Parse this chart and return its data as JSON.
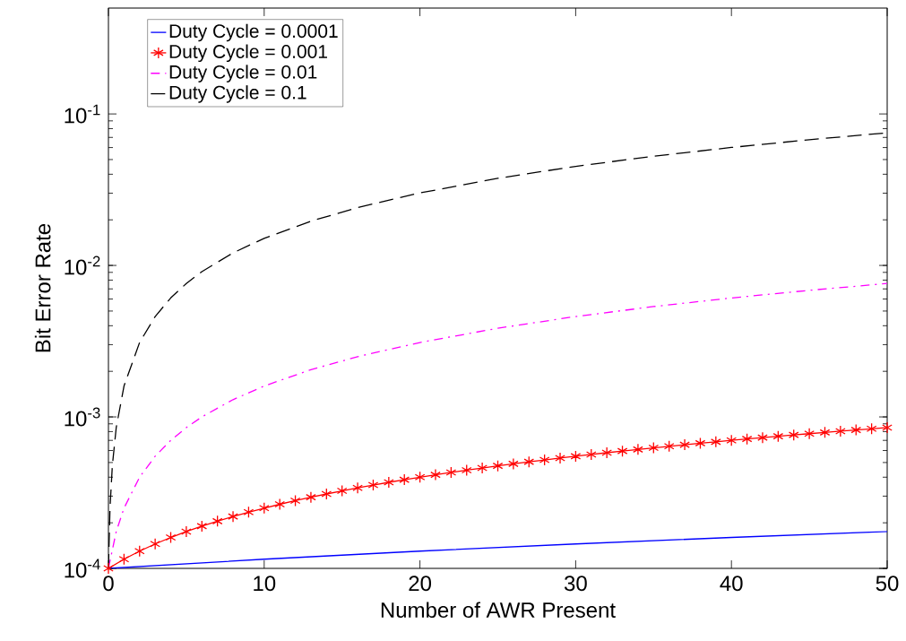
{
  "chart_data": {
    "type": "line",
    "xlabel": "Number of AWR Present",
    "ylabel": "Bit Error Rate",
    "log": "y",
    "grid": false,
    "legend": "top left",
    "xlim": [
      0,
      50
    ],
    "xticks": [
      0,
      10,
      20,
      30,
      40,
      50
    ],
    "ylim": [
      0.0001,
      0.5
    ],
    "yticks": [
      {
        "value": 0.0001,
        "label": "10$^{-4}$"
      },
      {
        "value": 0.001,
        "label": "10$^{-3}$"
      },
      {
        "value": 0.01,
        "label": "10$^{-2}$"
      },
      {
        "value": 0.1,
        "label": "10$^{-1}$"
      }
    ],
    "series": [
      {
        "name": "Duty Cycle = 0.0001",
        "color": "#0000ff",
        "line_style": "solid",
        "marker": "none",
        "x": [
          0,
          10,
          20,
          30,
          40,
          50
        ],
        "values": [
          0.0001,
          0.000115,
          0.00013,
          0.000145,
          0.00016,
          0.000175
        ]
      },
      {
        "name": "Duty Cycle = 0.001",
        "color": "#ff0000",
        "line_style": "solid",
        "marker": "cross",
        "x": [
          0,
          1,
          2,
          3,
          4,
          5,
          6,
          7,
          8,
          9,
          10,
          11,
          12,
          13,
          14,
          15,
          16,
          17,
          18,
          19,
          20,
          21,
          22,
          23,
          24,
          25,
          26,
          27,
          28,
          29,
          30,
          31,
          32,
          33,
          34,
          35,
          36,
          37,
          38,
          39,
          40,
          41,
          42,
          43,
          44,
          45,
          46,
          47,
          48,
          49,
          50
        ],
        "values": [
          0.0001,
          0.000115,
          0.00013,
          0.000145,
          0.00016,
          0.000175,
          0.00019,
          0.000205,
          0.00022,
          0.000235,
          0.00025,
          0.000265,
          0.00028,
          0.000295,
          0.00031,
          0.000325,
          0.00034,
          0.000355,
          0.00037,
          0.000385,
          0.0004,
          0.000415,
          0.00043,
          0.000445,
          0.00046,
          0.000475,
          0.00049,
          0.000505,
          0.00052,
          0.000535,
          0.00055,
          0.000565,
          0.00058,
          0.000595,
          0.00061,
          0.000625,
          0.00064,
          0.000655,
          0.00067,
          0.000685,
          0.0007,
          0.000715,
          0.00073,
          0.000745,
          0.00076,
          0.000775,
          0.00079,
          0.000805,
          0.00082,
          0.000835,
          0.00085
        ]
      },
      {
        "name": "Duty Cycle = 0.01",
        "color": "#ff00ff",
        "line_style": "dashdot",
        "marker": "none",
        "x": [
          0,
          0.5,
          1,
          2,
          3,
          4,
          5,
          6,
          8,
          10,
          13,
          16,
          20,
          25,
          30,
          35,
          40,
          45,
          50
        ],
        "values": [
          0.0001,
          0.000175,
          0.00025,
          0.0004,
          0.00055,
          0.0007,
          0.00085,
          0.001,
          0.0013,
          0.0016,
          0.00205,
          0.0025,
          0.0031,
          0.00385,
          0.0046,
          0.00535,
          0.0061,
          0.00685,
          0.0076
        ]
      },
      {
        "name": "Duty Cycle = 0.1",
        "color": "#000000",
        "line_style": "dashed",
        "marker": "none",
        "x": [
          0,
          0.1,
          0.25,
          0.5,
          1,
          2,
          3,
          4,
          5,
          6,
          8,
          10,
          13,
          16,
          20,
          25,
          30,
          35,
          40,
          45,
          50
        ],
        "values": [
          0.0001,
          0.00025,
          0.000475,
          0.00085,
          0.0016,
          0.0031,
          0.0046,
          0.0061,
          0.0076,
          0.0091,
          0.0121,
          0.0151,
          0.0196,
          0.0241,
          0.0301,
          0.0376,
          0.0451,
          0.0526,
          0.0601,
          0.0676,
          0.0751
        ]
      }
    ]
  }
}
